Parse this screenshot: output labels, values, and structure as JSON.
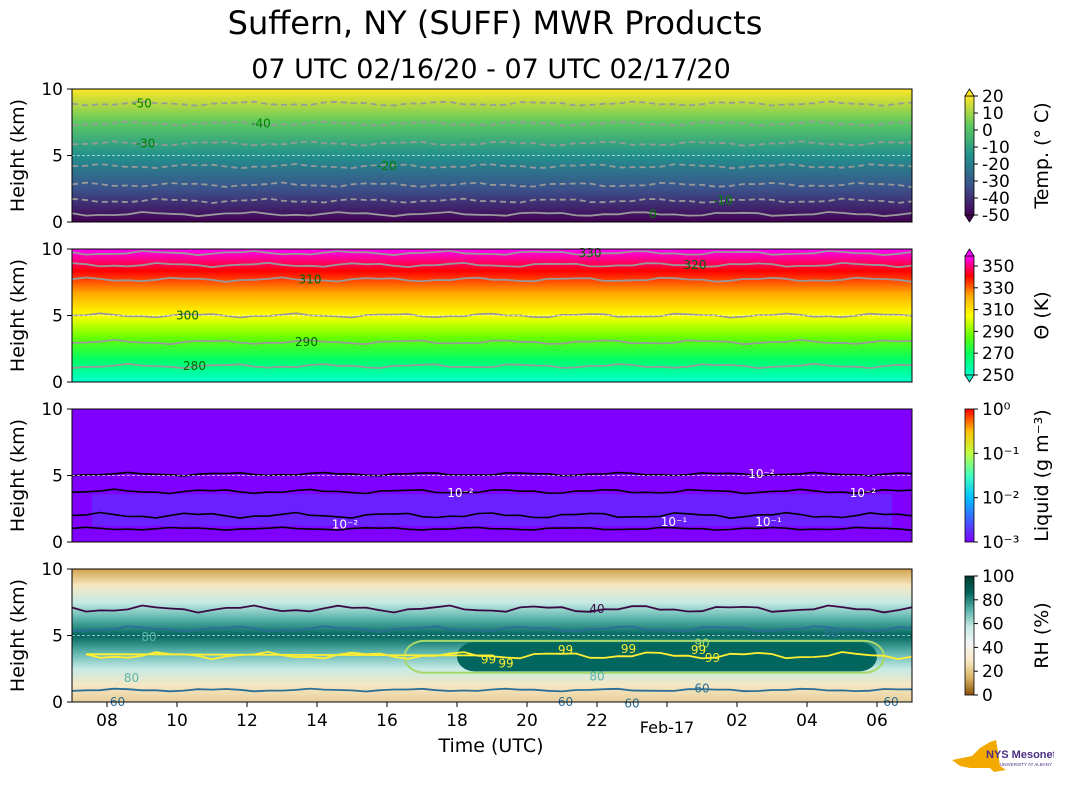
{
  "title": "Suffern, NY (SUFF) MWR Products",
  "subtitle": "07 UTC 02/16/20 - 07 UTC 02/17/20",
  "logo": {
    "text": "NYS Mesonet",
    "subtext": "UNIVERSITY AT ALBANY"
  },
  "chart_data": {
    "type": "heatmap",
    "xlabel": "Time (UTC)",
    "x_ticks": [
      "08",
      "10",
      "12",
      "14",
      "16",
      "18",
      "20",
      "22",
      "Feb-17",
      "02",
      "04",
      "06"
    ],
    "x_tick_hours": [
      1,
      3,
      5,
      7,
      9,
      11,
      13,
      15,
      17,
      19,
      21,
      23
    ],
    "x_range_hours": [
      0,
      24
    ],
    "panels": [
      {
        "name": "temperature",
        "ylabel": "Height (km)",
        "ylim": [
          0,
          10
        ],
        "y_ticks": [
          "0",
          "5",
          "10"
        ],
        "colorbar_label": "Temp. (° C)",
        "colorbar_ticks": [
          "20",
          "10",
          "0",
          "-10",
          "-20",
          "-30",
          "-40",
          "-50"
        ],
        "colors": [
          "#440154",
          "#3b528b",
          "#21918c",
          "#5ec962",
          "#fde725"
        ],
        "contour_labels": [
          {
            "text": "-50",
            "t": 2.0,
            "h": 8.9
          },
          {
            "text": "-40",
            "t": 5.4,
            "h": 7.4
          },
          {
            "text": "-30",
            "t": 2.1,
            "h": 5.9
          },
          {
            "text": "-20",
            "t": 9.0,
            "h": 4.2
          },
          {
            "text": "-10",
            "t": 18.6,
            "h": 1.6
          },
          {
            "text": "0",
            "t": 16.6,
            "h": 0.6
          }
        ]
      },
      {
        "name": "theta",
        "ylabel": "Height (km)",
        "ylim": [
          0,
          10
        ],
        "y_ticks": [
          "0",
          "5",
          "10"
        ],
        "colorbar_label": "Θ (K)",
        "colorbar_ticks": [
          "350",
          "330",
          "310",
          "290",
          "270",
          "250"
        ],
        "colors": [
          "#00ffcc",
          "#00ff66",
          "#66ff00",
          "#ffff00",
          "#ffaa00",
          "#ff0000",
          "#ff00ff"
        ],
        "contour_labels": [
          {
            "text": "280",
            "t": 3.5,
            "h": 1.2
          },
          {
            "text": "290",
            "t": 6.7,
            "h": 3.0
          },
          {
            "text": "300",
            "t": 3.3,
            "h": 5.0
          },
          {
            "text": "310",
            "t": 6.8,
            "h": 7.7
          },
          {
            "text": "320",
            "t": 17.8,
            "h": 8.8
          },
          {
            "text": "330",
            "t": 14.8,
            "h": 9.7
          }
        ]
      },
      {
        "name": "liquid",
        "ylabel": "Height (km)",
        "ylim": [
          0,
          10
        ],
        "y_ticks": [
          "0",
          "5",
          "10"
        ],
        "colorbar_label": "Liquid (g m⁻³)",
        "colorbar_ticks": [
          "10⁰",
          "10⁻¹",
          "10⁻²",
          "10⁻³"
        ],
        "colors": [
          "#7f00ff",
          "#3f5fff",
          "#00c0ff",
          "#40ffc0",
          "#c0ff40",
          "#ffc000",
          "#ff0000"
        ],
        "contour_labels": [
          {
            "text": "10⁻²",
            "t": 7.8,
            "h": 1.3
          },
          {
            "text": "10⁻²",
            "t": 11.1,
            "h": 3.7
          },
          {
            "text": "10⁻¹",
            "t": 17.2,
            "h": 1.5
          },
          {
            "text": "10⁻²",
            "t": 19.7,
            "h": 5.1
          },
          {
            "text": "10⁻²",
            "t": 22.6,
            "h": 3.7
          },
          {
            "text": "10⁻¹",
            "t": 19.9,
            "h": 1.5
          }
        ]
      },
      {
        "name": "rh",
        "ylabel": "Height (km)",
        "ylim": [
          0,
          10
        ],
        "y_ticks": [
          "0",
          "5",
          "10"
        ],
        "colorbar_label": "RH (%)",
        "colorbar_ticks": [
          "100",
          "80",
          "60",
          "40",
          "20",
          "0"
        ],
        "colors": [
          "#8c510a",
          "#d8b365",
          "#f6e8c3",
          "#f5f5f5",
          "#c7eae5",
          "#5ab4ac",
          "#01665e",
          "#003c30"
        ],
        "contour_labels": [
          {
            "text": "40",
            "t": 15.0,
            "h": 7.0
          },
          {
            "text": "60",
            "t": 21.7,
            "h": 5.2
          },
          {
            "text": "60",
            "t": 18.0,
            "h": 1.0
          },
          {
            "text": "60",
            "t": 14.1,
            "h": 0.0
          },
          {
            "text": "60",
            "t": 16.0,
            "h": -0.1
          },
          {
            "text": "60",
            "t": 23.4,
            "h": 0.0
          },
          {
            "text": "60",
            "t": 1.3,
            "h": 0.0
          },
          {
            "text": "80",
            "t": 2.2,
            "h": 4.9
          },
          {
            "text": "80",
            "t": 1.7,
            "h": 1.8
          },
          {
            "text": "80",
            "t": 15.0,
            "h": 1.9
          },
          {
            "text": "90",
            "t": 18.0,
            "h": 4.4
          },
          {
            "text": "99",
            "t": 11.9,
            "h": 3.2
          },
          {
            "text": "99",
            "t": 12.4,
            "h": 2.9
          },
          {
            "text": "99",
            "t": 14.1,
            "h": 3.9
          },
          {
            "text": "99",
            "t": 15.9,
            "h": 4.0
          },
          {
            "text": "99",
            "t": 17.9,
            "h": 3.9
          },
          {
            "text": "99",
            "t": 18.3,
            "h": 3.3
          }
        ]
      }
    ]
  }
}
